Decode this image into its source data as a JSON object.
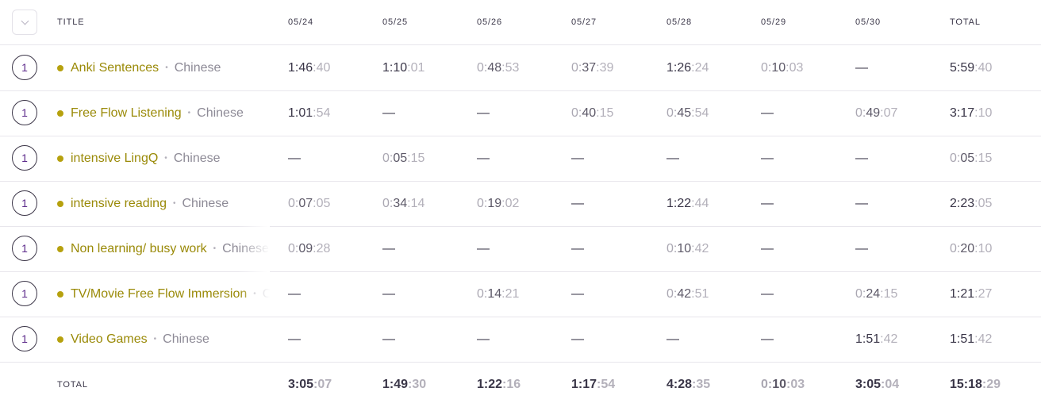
{
  "header": {
    "title_label": "TITLE",
    "dates": [
      "05/24",
      "05/25",
      "05/26",
      "05/27",
      "05/28",
      "05/29",
      "05/30"
    ],
    "total_label": "TOTAL"
  },
  "rows": [
    {
      "count": "1",
      "project": "Anki Sentences",
      "client": "Chinese",
      "cells": [
        "1:46:40",
        "1:10:01",
        "0:48:53",
        "0:37:39",
        "1:26:24",
        "0:10:03",
        "—"
      ],
      "total": "5:59:40"
    },
    {
      "count": "1",
      "project": "Free Flow Listening",
      "client": "Chinese",
      "cells": [
        "1:01:54",
        "—",
        "—",
        "0:40:15",
        "0:45:54",
        "—",
        "0:49:07"
      ],
      "total": "3:17:10"
    },
    {
      "count": "1",
      "project": "intensive LingQ",
      "client": "Chinese",
      "cells": [
        "—",
        "0:05:15",
        "—",
        "—",
        "—",
        "—",
        "—"
      ],
      "total": "0:05:15"
    },
    {
      "count": "1",
      "project": "intensive reading",
      "client": "Chinese",
      "cells": [
        "0:07:05",
        "0:34:14",
        "0:19:02",
        "—",
        "1:22:44",
        "—",
        "—"
      ],
      "total": "2:23:05"
    },
    {
      "count": "1",
      "project": "Non learning/ busy work",
      "client": "Chinese",
      "cells": [
        "0:09:28",
        "—",
        "—",
        "—",
        "0:10:42",
        "—",
        "—"
      ],
      "total": "0:20:10"
    },
    {
      "count": "1",
      "project": "TV/Movie Free Flow Immersion",
      "client": "Chinese",
      "cells": [
        "—",
        "—",
        "0:14:21",
        "—",
        "0:42:51",
        "—",
        "0:24:15"
      ],
      "total": "1:21:27"
    },
    {
      "count": "1",
      "project": "Video Games",
      "client": "Chinese",
      "cells": [
        "—",
        "—",
        "—",
        "—",
        "—",
        "—",
        "1:51:42"
      ],
      "total": "1:51:42"
    }
  ],
  "footer": {
    "label": "TOTAL",
    "cells": [
      "3:05:07",
      "1:49:30",
      "1:22:16",
      "1:17:54",
      "4:28:35",
      "0:10:03",
      "3:05:04"
    ],
    "total": "15:18:29"
  },
  "colors": {
    "project": "#9a8a08",
    "dot": "#b6a10e",
    "count_text": "#5c2a8a"
  },
  "icons": {
    "collapse": "chevron-down-icon",
    "dot": "project-color-dot-icon"
  }
}
